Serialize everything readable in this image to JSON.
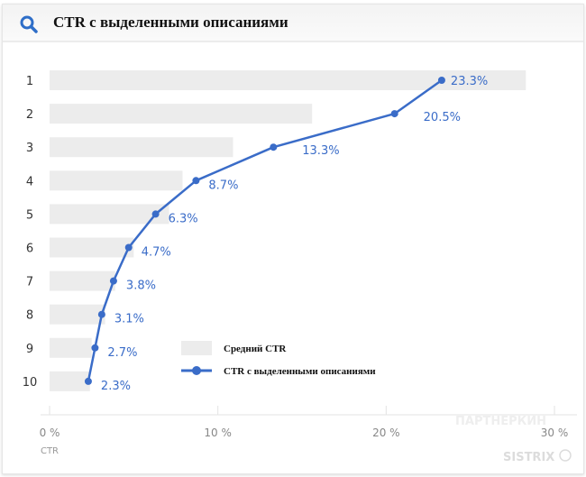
{
  "header": {
    "title": "CTR с выделенными описаниями",
    "icon": "search-icon"
  },
  "chart_data": {
    "type": "bar",
    "categories": [
      "1",
      "2",
      "3",
      "4",
      "5",
      "6",
      "7",
      "8",
      "9",
      "10"
    ],
    "series": [
      {
        "name": "Средний CTR",
        "type": "bar",
        "color": "#ececec",
        "values": [
          28.3,
          15.6,
          10.9,
          7.9,
          7.1,
          5.0,
          3.9,
          3.3,
          2.5,
          2.4
        ]
      },
      {
        "name": "CTR с выделенными описаниями",
        "type": "line",
        "color": "#3a6cc8",
        "values": [
          23.3,
          20.5,
          13.3,
          8.7,
          6.3,
          4.7,
          3.8,
          3.1,
          2.7,
          2.3
        ],
        "labels": [
          "23.3%",
          "20.5%",
          "13.3%",
          "8.7%",
          "6.3%",
          "4.7%",
          "3.8%",
          "3.1%",
          "2.7%",
          "2.3%"
        ]
      }
    ],
    "orientation": "horizontal",
    "xlim": [
      0,
      30
    ],
    "xticks": [
      "0 %",
      "10 %",
      "20 %",
      "30 %"
    ],
    "xlabel": "CTR",
    "legend": "center-right"
  },
  "watermarks": [
    "ПАРТНЕРКИН",
    "SISTRIX"
  ]
}
